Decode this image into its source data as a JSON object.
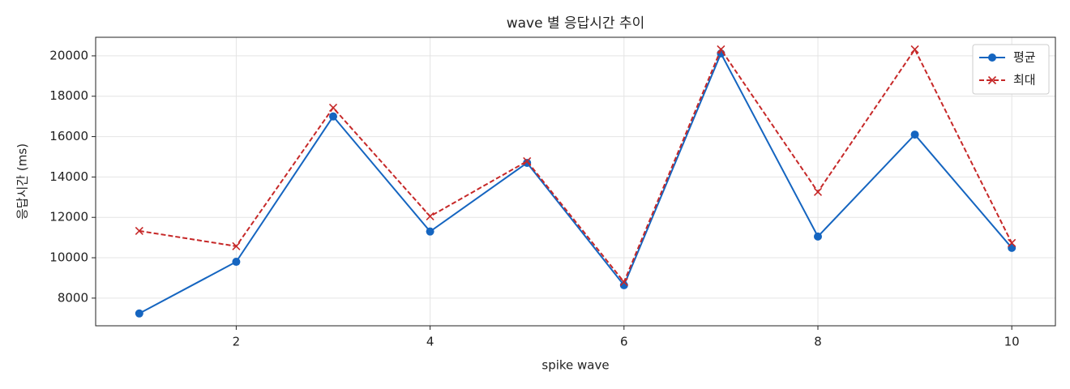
{
  "chart_data": {
    "type": "line",
    "title": "wave 별 응답시간 추이",
    "xlabel": "spike wave",
    "ylabel": "응답시간 (ms)",
    "x": [
      1,
      2,
      3,
      4,
      5,
      6,
      7,
      8,
      9,
      10
    ],
    "series": [
      {
        "name": "평균",
        "color": "#1565c0",
        "style": "solid",
        "marker": "circle",
        "values": [
          7240,
          9800,
          17000,
          11300,
          14700,
          8640,
          20120,
          11050,
          16100,
          10490
        ]
      },
      {
        "name": "최대",
        "color": "#c62828",
        "style": "dashed",
        "marker": "x",
        "values": [
          11330,
          10570,
          17430,
          12050,
          14780,
          8800,
          20320,
          13260,
          20320,
          10730
        ]
      }
    ],
    "xlim": [
      0.55,
      10.45
    ],
    "xticks": [
      2,
      4,
      6,
      8,
      10
    ],
    "ylim": [
      6630,
      20920
    ],
    "yticks": [
      8000,
      10000,
      12000,
      14000,
      16000,
      18000,
      20000
    ],
    "grid": true,
    "legend": "upper right"
  }
}
